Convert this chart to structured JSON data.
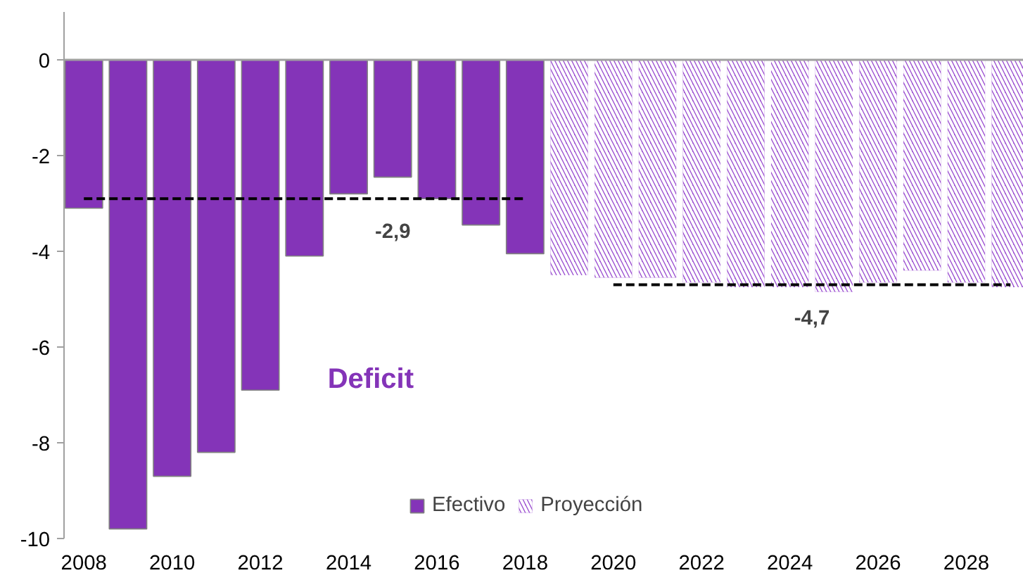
{
  "chart_data": {
    "type": "bar",
    "x": [
      2008,
      2009,
      2010,
      2011,
      2012,
      2013,
      2014,
      2015,
      2016,
      2017,
      2018,
      2019,
      2020,
      2021,
      2022,
      2023,
      2024,
      2025,
      2026,
      2027,
      2028,
      2029
    ],
    "series": [
      {
        "name": "Efectivo",
        "color": "#8434b8",
        "values": [
          -3.1,
          -9.8,
          -8.7,
          -8.2,
          -6.9,
          -4.1,
          -2.8,
          -2.45,
          -2.9,
          -3.45,
          -4.05,
          null,
          null,
          null,
          null,
          null,
          null,
          null,
          null,
          null,
          null,
          null
        ]
      },
      {
        "name": "Proyección",
        "color": "#9b4fd0",
        "values": [
          null,
          null,
          null,
          null,
          null,
          null,
          null,
          null,
          null,
          null,
          null,
          -4.5,
          -4.55,
          -4.55,
          -4.65,
          -4.75,
          -4.75,
          -4.85,
          -4.65,
          -4.4,
          -4.65,
          -4.75
        ]
      },
      {
        "type": "line",
        "color": "#000000",
        "line_style": "dashed",
        "x": [
          2008,
          2018
        ],
        "values": [
          -2.9,
          -2.9
        ]
      },
      {
        "type": "line",
        "color": "#000000",
        "line_style": "dashed",
        "x": [
          2020,
          2029
        ],
        "values": [
          -4.7,
          -4.7
        ]
      }
    ],
    "annotations": [
      {
        "text": "-2,9",
        "x": 2015,
        "y": -2.9
      },
      {
        "text": "-4,7",
        "x": 2024.5,
        "y": -4.7
      },
      "Deficit"
    ],
    "ref_lines": [
      {
        "axis": "y",
        "value": 0,
        "color": "#a0a0a0"
      }
    ],
    "xlim": [
      2007.55,
      2029.3
    ],
    "xticks": [
      2008,
      2010,
      2012,
      2014,
      2016,
      2018,
      2020,
      2022,
      2024,
      2026,
      2028
    ],
    "ylim": [
      -10,
      1
    ],
    "yticks": [
      -10,
      -8,
      -6,
      -4,
      -2,
      0
    ],
    "grid": false,
    "legend": "bottom"
  }
}
